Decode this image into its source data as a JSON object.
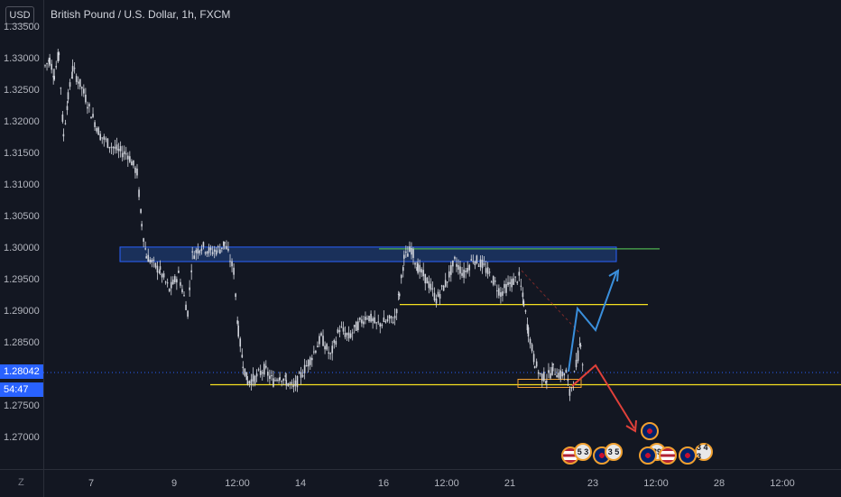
{
  "symbol": {
    "legend": "British Pound / U.S. Dollar, 1h, FXCM",
    "currency": "USD"
  },
  "price_scale": {
    "ticks": [
      "1.33500",
      "1.33000",
      "1.32500",
      "1.32000",
      "1.31500",
      "1.31000",
      "1.30500",
      "1.30000",
      "1.29500",
      "1.29000",
      "1.28500",
      "1.28000",
      "1.27500",
      "1.27000"
    ],
    "last_price": "1.28042",
    "countdown": "54:47"
  },
  "time_scale": {
    "ticks": [
      "7",
      "9",
      "12:00",
      "14",
      "16",
      "12:00",
      "21",
      "23",
      "12:00",
      "28",
      "12:00"
    ],
    "corner": "Z"
  },
  "events": {
    "group1": "5 3",
    "group2": "3 5",
    "group3": "29",
    "group4": "3 4 3"
  },
  "colors": {
    "background": "#131722",
    "candle": "#d1d4dc",
    "zone_fill": "#1e3a6e",
    "zone_border": "#2962ff",
    "support_line": "#f5e020",
    "resistance_line": "#4caf50",
    "bull_arrow": "#3a8fdc",
    "bear_arrow": "#e0413a",
    "price_label": "#2962ff"
  },
  "chart_data": {
    "type": "candlestick",
    "title": "British Pound / U.S. Dollar, 1h, FXCM",
    "ylim": [
      1.2665,
      1.3375
    ],
    "close_path": [
      [
        0,
        1.329
      ],
      [
        5,
        1.33
      ],
      [
        10,
        1.3275
      ],
      [
        15,
        1.331
      ],
      [
        20,
        1.318
      ],
      [
        25,
        1.324
      ],
      [
        30,
        1.3285
      ],
      [
        40,
        1.3255
      ],
      [
        50,
        1.3215
      ],
      [
        60,
        1.318
      ],
      [
        70,
        1.3165
      ],
      [
        80,
        1.3155
      ],
      [
        90,
        1.315
      ],
      [
        100,
        1.312
      ],
      [
        105,
        1.304
      ],
      [
        110,
        1.299
      ],
      [
        118,
        1.2975
      ],
      [
        125,
        1.2965
      ],
      [
        135,
        1.2935
      ],
      [
        145,
        1.296
      ],
      [
        155,
        1.29
      ],
      [
        160,
        1.299
      ],
      [
        170,
        1.3005
      ],
      [
        180,
        1.2995
      ],
      [
        190,
        1.3
      ],
      [
        195,
        1.301
      ],
      [
        205,
        1.2965
      ],
      [
        210,
        1.287
      ],
      [
        215,
        1.282
      ],
      [
        220,
        1.279
      ],
      [
        228,
        1.2795
      ],
      [
        238,
        1.281
      ],
      [
        248,
        1.279
      ],
      [
        255,
        1.28
      ],
      [
        262,
        1.279
      ],
      [
        270,
        1.278
      ],
      [
        278,
        1.28
      ],
      [
        288,
        1.2825
      ],
      [
        300,
        1.286
      ],
      [
        310,
        1.283
      ],
      [
        320,
        1.2875
      ],
      [
        330,
        1.286
      ],
      [
        340,
        1.288
      ],
      [
        350,
        1.2895
      ],
      [
        360,
        1.288
      ],
      [
        370,
        1.2885
      ],
      [
        380,
        1.289
      ],
      [
        385,
        1.293
      ],
      [
        390,
        1.2985
      ],
      [
        398,
        1.3
      ],
      [
        405,
        1.297
      ],
      [
        415,
        1.295
      ],
      [
        425,
        1.292
      ],
      [
        435,
        1.2945
      ],
      [
        445,
        1.298
      ],
      [
        455,
        1.296
      ],
      [
        465,
        1.2985
      ],
      [
        475,
        1.2975
      ],
      [
        485,
        1.2955
      ],
      [
        495,
        1.293
      ],
      [
        505,
        1.2945
      ],
      [
        515,
        1.2955
      ],
      [
        520,
        1.2915
      ],
      [
        525,
        1.287
      ],
      [
        532,
        1.282
      ],
      [
        538,
        1.28
      ],
      [
        545,
        1.2795
      ],
      [
        552,
        1.281
      ],
      [
        560,
        1.28
      ],
      [
        566,
        1.2805
      ],
      [
        570,
        1.277
      ],
      [
        575,
        1.28
      ],
      [
        582,
        1.2855
      ],
      [
        585,
        1.2804
      ]
    ],
    "annotations": {
      "resistance_zone": [
        1.298,
        1.3003
      ],
      "resistance_line": 1.3003,
      "mid_line": 1.2912,
      "support_line": 1.2785,
      "last_price": 1.28042
    }
  }
}
